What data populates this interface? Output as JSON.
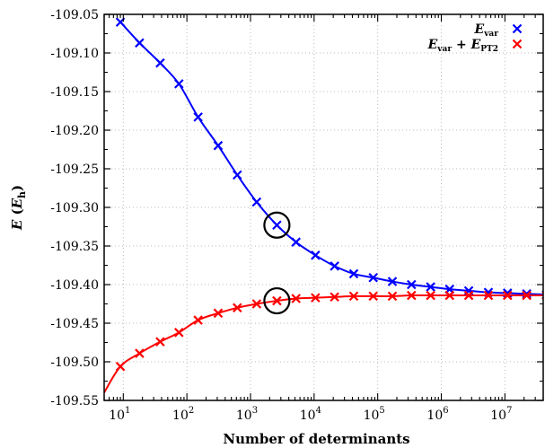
{
  "chart_data": {
    "type": "line",
    "xlabel": "Number of determinants",
    "ylabel": "E (E_h)",
    "ylabel_parts": {
      "symbol": "E",
      "open": "(",
      "unit": "E",
      "unit_sub": "h",
      "close": ")"
    },
    "x_scale": "log",
    "xlim": [
      5,
      40000000
    ],
    "ylim": [
      -109.55,
      -109.05
    ],
    "grid": true,
    "legend_position": "top-right",
    "y_ticks": [
      "-109.05",
      "-109.10",
      "-109.15",
      "-109.20",
      "-109.25",
      "-109.30",
      "-109.35",
      "-109.40",
      "-109.45",
      "-109.50",
      "-109.55"
    ],
    "x_ticks": [
      {
        "base": "10",
        "exp": "1",
        "value": 10
      },
      {
        "base": "10",
        "exp": "2",
        "value": 100
      },
      {
        "base": "10",
        "exp": "3",
        "value": 1000
      },
      {
        "base": "10",
        "exp": "4",
        "value": 10000
      },
      {
        "base": "10",
        "exp": "5",
        "value": 100000
      },
      {
        "base": "10",
        "exp": "6",
        "value": 1000000
      },
      {
        "base": "10",
        "exp": "7",
        "value": 10000000
      }
    ],
    "series": [
      {
        "name": "E_var",
        "legend_main": "E",
        "legend_sub": "var",
        "color": "#0000ff",
        "x": [
          9,
          18,
          38,
          75,
          150,
          310,
          620,
          1250,
          2600,
          5200,
          10500,
          21000,
          42000,
          85000,
          170000,
          340000,
          680000,
          1350000,
          2700000,
          5500000,
          11000000,
          22000000,
          45000000
        ],
        "y": [
          -109.06,
          -109.087,
          -109.113,
          -109.14,
          -109.183,
          -109.22,
          -109.258,
          -109.293,
          -109.323,
          -109.345,
          -109.362,
          -109.376,
          -109.386,
          -109.391,
          -109.396,
          -109.4,
          -109.403,
          -109.406,
          -109.408,
          -109.41,
          -109.411,
          -109.412,
          -109.413
        ]
      },
      {
        "name": "E_var + E_PT2",
        "legend_main": "E",
        "legend_sub": "var",
        "legend_plus": "+",
        "legend_main2": "E",
        "legend_sub2": "PT2",
        "color": "#ff0000",
        "x": [
          9,
          18,
          38,
          75,
          150,
          310,
          620,
          1250,
          2600,
          5200,
          10500,
          21000,
          42000,
          85000,
          170000,
          340000,
          680000,
          1350000,
          2700000,
          5500000,
          11000000,
          22000000,
          45000000
        ],
        "y": [
          -109.506,
          -109.489,
          -109.474,
          -109.462,
          -109.446,
          -109.437,
          -109.43,
          -109.425,
          -109.421,
          -109.418,
          -109.417,
          -109.416,
          -109.415,
          -109.415,
          -109.415,
          -109.414,
          -109.414,
          -109.414,
          -109.414,
          -109.414,
          -109.414,
          -109.414,
          -109.414
        ]
      }
    ],
    "curve_start": {
      "x": 5,
      "y": -109.54
    },
    "highlight_circles": [
      {
        "x": 2600,
        "y": -109.323
      },
      {
        "x": 2600,
        "y": -109.421
      }
    ]
  }
}
